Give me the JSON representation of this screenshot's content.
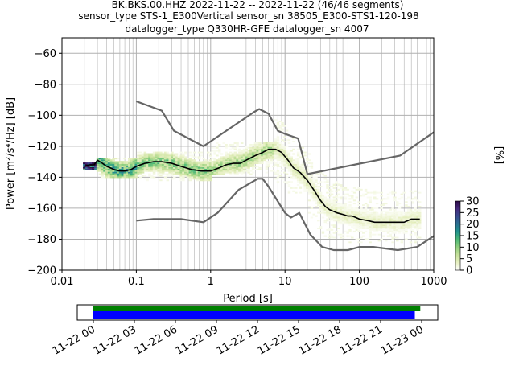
{
  "title_lines": [
    "BK.BKS.00.HHZ   2022-11-22 -- 2022-11-22  (46/46 segments)",
    "sensor_type STS-1_E300Vertical sensor_sn 38505_E300-STS1-120-198",
    "datalogger_type Q330HR-GFE datalogger_sn 4007"
  ],
  "chart_data": {
    "type": "heatmap",
    "xlabel": "Period [s]",
    "ylabel": "Power [m²/s⁴/Hz] [dB]",
    "x_scale": "log",
    "xlim": [
      0.01,
      1000
    ],
    "ylim": [
      -200,
      -50
    ],
    "x_ticks": [
      0.01,
      0.1,
      1,
      10,
      100,
      1000
    ],
    "x_tick_labels": [
      "0.01",
      "0.1",
      "1",
      "10",
      "100",
      "1000"
    ],
    "y_ticks": [
      -200,
      -180,
      -160,
      -140,
      -120,
      -100,
      -80,
      -60
    ],
    "y_tick_labels": [
      "−200",
      "−180",
      "−160",
      "−140",
      "−120",
      "−100",
      "−80",
      "−60"
    ],
    "grid": true,
    "colorbar": {
      "label": "[%]",
      "min": 0,
      "max": 30,
      "ticks": [
        0,
        5,
        10,
        15,
        20,
        25,
        30
      ],
      "tick_labels": [
        "0",
        "5",
        "10",
        "15",
        "20",
        "25",
        "30"
      ],
      "colors": [
        "#ffffff",
        "#e6efc0",
        "#c5e09a",
        "#8fcf7e",
        "#4cb875",
        "#21938c",
        "#2a7090",
        "#394b8e",
        "#462a7c",
        "#2c0a46"
      ]
    },
    "series": [
      {
        "role": "mean",
        "color": "#000000",
        "points": [
          [
            0.02,
            -133
          ],
          [
            0.023,
            -132
          ],
          [
            0.027,
            -132
          ],
          [
            0.03,
            -129
          ],
          [
            0.035,
            -131
          ],
          [
            0.04,
            -133
          ],
          [
            0.05,
            -135
          ],
          [
            0.06,
            -136
          ],
          [
            0.07,
            -136
          ],
          [
            0.085,
            -135
          ],
          [
            0.1,
            -133
          ],
          [
            0.13,
            -131
          ],
          [
            0.17,
            -130
          ],
          [
            0.22,
            -130
          ],
          [
            0.3,
            -131
          ],
          [
            0.4,
            -133
          ],
          [
            0.55,
            -135
          ],
          [
            0.75,
            -136
          ],
          [
            1.0,
            -136
          ],
          [
            1.3,
            -134
          ],
          [
            1.6,
            -132
          ],
          [
            2.0,
            -131
          ],
          [
            2.5,
            -131
          ],
          [
            3.0,
            -129
          ],
          [
            4.0,
            -126
          ],
          [
            5.0,
            -124
          ],
          [
            6.0,
            -122
          ],
          [
            7.5,
            -122
          ],
          [
            9.0,
            -124
          ],
          [
            11,
            -129
          ],
          [
            13,
            -134
          ],
          [
            16,
            -137
          ],
          [
            20,
            -142
          ],
          [
            25,
            -149
          ],
          [
            30,
            -155
          ],
          [
            35,
            -159
          ],
          [
            40,
            -161
          ],
          [
            50,
            -163
          ],
          [
            60,
            -164
          ],
          [
            70,
            -165
          ],
          [
            80,
            -165
          ],
          [
            90,
            -166
          ],
          [
            100,
            -167
          ],
          [
            130,
            -168
          ],
          [
            160,
            -169
          ],
          [
            200,
            -169
          ],
          [
            300,
            -169
          ],
          [
            400,
            -169
          ],
          [
            500,
            -167
          ],
          [
            650,
            -167
          ]
        ]
      },
      {
        "role": "noise-model-high",
        "color": "#666666",
        "points": [
          [
            0.1,
            -91
          ],
          [
            0.22,
            -97
          ],
          [
            0.32,
            -110
          ],
          [
            0.8,
            -120
          ],
          [
            3.8,
            -98
          ],
          [
            4.5,
            -96
          ],
          [
            6.0,
            -99
          ],
          [
            8.0,
            -110
          ],
          [
            10,
            -112
          ],
          [
            15,
            -115
          ],
          [
            20,
            -138
          ],
          [
            354,
            -126
          ],
          [
            1000,
            -111
          ]
        ]
      },
      {
        "role": "noise-model-low",
        "color": "#666666",
        "points": [
          [
            0.1,
            -168
          ],
          [
            0.17,
            -167
          ],
          [
            0.4,
            -167
          ],
          [
            0.8,
            -169
          ],
          [
            1.24,
            -163
          ],
          [
            2.4,
            -148
          ],
          [
            4.3,
            -141
          ],
          [
            5.0,
            -141
          ],
          [
            6.0,
            -146
          ],
          [
            10,
            -163
          ],
          [
            12,
            -166
          ],
          [
            15.6,
            -163
          ],
          [
            21.9,
            -177
          ],
          [
            31.6,
            -185
          ],
          [
            45,
            -187
          ],
          [
            70,
            -187
          ],
          [
            101,
            -185
          ],
          [
            154,
            -185
          ],
          [
            328,
            -187
          ],
          [
            600,
            -185
          ],
          [
            1000,
            -178
          ]
        ]
      }
    ],
    "density_bands": [
      {
        "period_range": [
          0.02,
          0.03
        ],
        "db_range": [
          -135,
          -131
        ],
        "level": 28
      },
      {
        "period_range": [
          0.03,
          0.1
        ],
        "db_range": [
          -140,
          -128
        ],
        "level": 14
      },
      {
        "period_range": [
          0.1,
          1.0
        ],
        "db_range": [
          -142,
          -124
        ],
        "level": 10
      },
      {
        "period_range": [
          1.0,
          7.0
        ],
        "db_range": [
          -138,
          -118
        ],
        "level": 8
      },
      {
        "period_range": [
          7.0,
          20
        ],
        "db_range": [
          -150,
          -90
        ],
        "level": 4
      },
      {
        "period_range": [
          20,
          100
        ],
        "db_range": [
          -182,
          -100
        ],
        "level": 3
      },
      {
        "period_range": [
          100,
          700
        ],
        "db_range": [
          -182,
          -140
        ],
        "level": 3
      }
    ],
    "time_axis": {
      "tick_labels": [
        "11-22 00",
        "11-22 03",
        "11-22 06",
        "11-22 09",
        "11-22 12",
        "11-22 15",
        "11-22 18",
        "11-22 21",
        "11-23 00"
      ],
      "data_coverage_color": "#008000",
      "segment_coverage_color": "#0000ff",
      "data_coverage_hours": [
        0,
        23.9
      ],
      "segment_coverage_hours": [
        0,
        23.5
      ]
    }
  }
}
